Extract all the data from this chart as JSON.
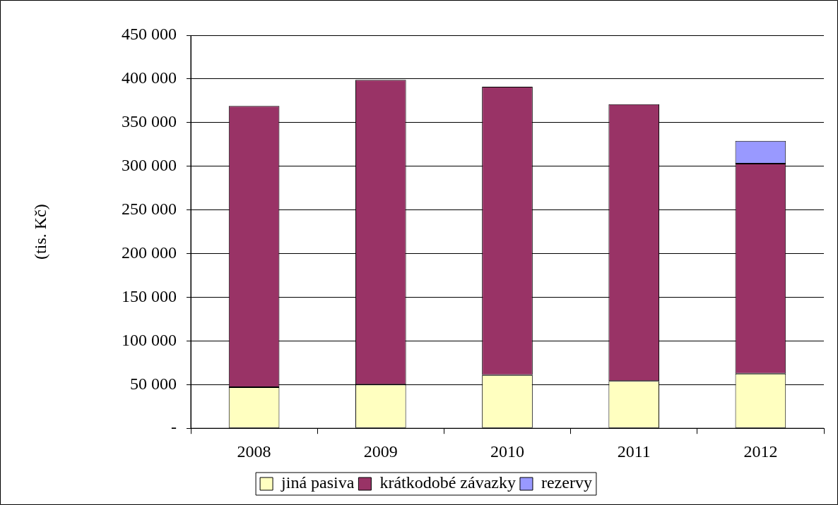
{
  "chart_data": {
    "type": "bar",
    "stacked": true,
    "ylabel": "(tis. Kč)",
    "categories": [
      "2008",
      "2009",
      "2010",
      "2011",
      "2012"
    ],
    "series": [
      {
        "name": "jiná pasiva",
        "color": "#ffffc0",
        "values": [
          47000,
          50000,
          61000,
          54000,
          62500
        ]
      },
      {
        "name": "krátkodobé závazky",
        "color": "#993366",
        "values": [
          322000,
          349000,
          330000,
          317000,
          240500
        ]
      },
      {
        "name": "rezervy",
        "color": "#9999ff",
        "values": [
          null,
          null,
          null,
          null,
          26000
        ]
      }
    ],
    "ylim": [
      0,
      450000
    ],
    "yticks": [
      {
        "value": 0,
        "label": "-"
      },
      {
        "value": 50000,
        "label": "50 000"
      },
      {
        "value": 100000,
        "label": "100 000"
      },
      {
        "value": 150000,
        "label": "150 000"
      },
      {
        "value": 200000,
        "label": "200 000"
      },
      {
        "value": 250000,
        "label": "250 000"
      },
      {
        "value": 300000,
        "label": "300 000"
      },
      {
        "value": 350000,
        "label": "350 000"
      },
      {
        "value": 400000,
        "label": "400 000"
      },
      {
        "value": 450000,
        "label": "450 000"
      }
    ],
    "grid": "y",
    "legend": "bottom"
  }
}
